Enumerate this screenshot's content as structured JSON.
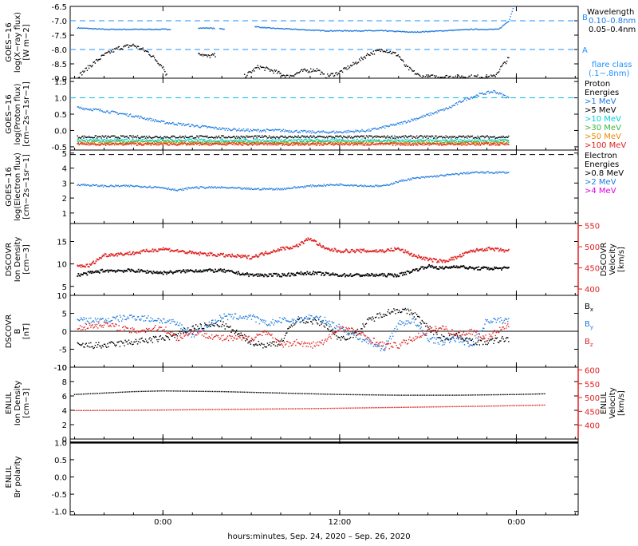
{
  "figure": {
    "xlabel": "hours:minutes, Sep. 24, 2020 – Sep. 26, 2020",
    "x_ticks": [
      "0:00",
      "12:00",
      "0:00"
    ],
    "colors": {
      "black": "#000000",
      "blue": "#1e7be0",
      "cyan": "#00d0e0",
      "green": "#3db83d",
      "orange": "#f08a00",
      "red": "#e02020",
      "magenta": "#e000e0",
      "dashed_cyan": "#00c0e8",
      "flare_blue": "#1e90ff"
    }
  },
  "chart_data": [
    {
      "type": "scatter",
      "panel": "goes-xray",
      "ylabel": [
        "GOES−16",
        "log(X−ray flux)",
        "[W m−2]"
      ],
      "ylim": [
        -9,
        -6.5
      ],
      "y_ticks": [
        "-6.5",
        "-7.0",
        "-7.5",
        "-8.0",
        "-8.5",
        "-9.0"
      ],
      "legend": {
        "title": "Wavelength",
        "items": [
          {
            "name": "0.10–0.8nm",
            "color": "blue"
          },
          {
            "name": "0.05–0.4nm",
            "color": "black"
          }
        ]
      },
      "flare_labels": [
        "B",
        "A"
      ],
      "flare_note": [
        "flare class",
        "(.1−.8nm)"
      ],
      "reference_lines": [
        -7.0,
        -8.0
      ],
      "series": [
        {
          "name": "0.10–0.8nm",
          "color": "blue",
          "x": [
            -5.8,
            -4,
            -2,
            0,
            1.5,
            3,
            3.8,
            5.5,
            6.2,
            7,
            9,
            11,
            13,
            15,
            17,
            19,
            21,
            22.8,
            23.5,
            23.8
          ],
          "y": [
            -7.25,
            -7.3,
            -7.3,
            -7.3,
            -7.28,
            -7.25,
            -7.28,
            -7.3,
            -7.2,
            -7.25,
            -7.3,
            -7.35,
            -7.35,
            -7.35,
            -7.4,
            -7.35,
            -7.3,
            -7.3,
            -7.0,
            -6.55
          ]
        },
        {
          "name": "0.05–0.4nm",
          "color": "black",
          "x": [
            -5.8,
            -5,
            -4,
            -3,
            -2,
            -1,
            0,
            0.3,
            2.4,
            3,
            3.5,
            5.5,
            6.5,
            7.5,
            8.5,
            9.5,
            10.5,
            11,
            12,
            13,
            14,
            15,
            16,
            16.5,
            17.5,
            18.5,
            21.7,
            22.5,
            23,
            23.5
          ],
          "y": [
            -8.95,
            -8.6,
            -8.2,
            -7.95,
            -7.85,
            -8.1,
            -8.6,
            -8.95,
            -8.1,
            -8.25,
            -8.2,
            -8.95,
            -8.6,
            -8.75,
            -8.95,
            -8.75,
            -8.7,
            -8.95,
            -8.8,
            -8.5,
            -8.15,
            -8.0,
            -8.2,
            -8.6,
            -8.95,
            -8.95,
            -8.95,
            -8.95,
            -8.6,
            -8.3
          ]
        }
      ]
    },
    {
      "type": "scatter",
      "panel": "goes-proton",
      "ylabel": [
        "GOES−16",
        "log(Proton flux)",
        "[cm−2s−1sr−1]"
      ],
      "ylim": [
        -0.6,
        1.6
      ],
      "y_ticks": [
        "1.5",
        "1.0",
        "0.5",
        "0.0",
        "-0.5"
      ],
      "legend": {
        "title": [
          "Proton",
          "Energies"
        ],
        "items": [
          {
            "name": ">1 MeV",
            "color": "blue"
          },
          {
            "name": ">5 MeV",
            "color": "black"
          },
          {
            "name": ">10 MeV",
            "color": "cyan"
          },
          {
            "name": ">30 MeV",
            "color": "green"
          },
          {
            "name": ">50 MeV",
            "color": "orange"
          },
          {
            "name": ">100 MeV",
            "color": "red"
          }
        ]
      },
      "reference_lines": [
        1.0
      ],
      "series": [
        {
          "name": ">1 MeV",
          "color": "blue",
          "x": [
            -5.8,
            -4,
            -2,
            0,
            2,
            4,
            6,
            8,
            10,
            12,
            14,
            16,
            17.5,
            18.5,
            19.5,
            20.5,
            21.5,
            22.5,
            23.5
          ],
          "y": [
            0.7,
            0.6,
            0.45,
            0.25,
            0.15,
            0.05,
            0.0,
            0.0,
            -0.05,
            -0.05,
            0.0,
            0.2,
            0.4,
            0.55,
            0.7,
            0.95,
            1.1,
            1.2,
            1.0
          ]
        },
        {
          "name": ">5 MeV",
          "color": "black",
          "x": [
            -5.8,
            23.5
          ],
          "y": [
            -0.2,
            -0.2
          ]
        },
        {
          "name": ">10 MeV",
          "color": "cyan",
          "x": [
            -5.8,
            23.5
          ],
          "y": [
            -0.3,
            -0.3
          ]
        },
        {
          "name": ">30 MeV",
          "color": "green",
          "x": [
            -5.8,
            23.5
          ],
          "y": [
            -0.35,
            -0.35
          ]
        },
        {
          "name": ">50 MeV",
          "color": "orange",
          "x": [
            -5.8,
            23.5
          ],
          "y": [
            -0.4,
            -0.4
          ]
        },
        {
          "name": ">100 MeV",
          "color": "red",
          "x": [
            -5.8,
            23.5
          ],
          "y": [
            -0.42,
            -0.42
          ]
        }
      ]
    },
    {
      "type": "scatter",
      "panel": "goes-electron",
      "ylabel": [
        "GOES−16",
        "log(Electron flux)",
        "[cm−2s−1sr−1]"
      ],
      "ylim": [
        0.3,
        5.2
      ],
      "y_ticks": [
        "5",
        "4",
        "3",
        "2",
        "1"
      ],
      "legend": {
        "title": [
          "Electron",
          "Energies"
        ],
        "items": [
          {
            "name": ">0.8 MeV",
            "color": "black"
          },
          {
            "name": ">2 MeV",
            "color": "blue"
          },
          {
            "name": ">4 MeV",
            "color": "magenta"
          }
        ]
      },
      "reference_lines": [
        4.9
      ],
      "series": [
        {
          "name": ">2 MeV",
          "color": "blue",
          "x": [
            -5.8,
            -4,
            -2,
            0,
            1,
            2,
            4,
            6,
            8,
            10,
            12,
            14,
            15,
            16,
            17,
            18,
            19,
            20,
            21,
            22,
            23.5
          ],
          "y": [
            2.9,
            2.8,
            2.8,
            2.7,
            2.5,
            2.7,
            2.7,
            2.6,
            2.6,
            2.8,
            2.9,
            2.8,
            2.8,
            3.1,
            3.3,
            3.4,
            3.5,
            3.6,
            3.7,
            3.7,
            3.7
          ]
        }
      ]
    },
    {
      "type": "scatter",
      "panel": "dscovr-plasma",
      "ylabel": [
        "DSCOVR",
        "Ion Density",
        "[cm−3]"
      ],
      "ylabel_right": [
        "DSCOVR",
        "Velocity",
        "[km/s]"
      ],
      "ylim": [
        3,
        19
      ],
      "ylim_right": [
        385,
        555
      ],
      "y_ticks": [
        "15",
        "10",
        "5"
      ],
      "y_ticks_right": [
        "550",
        "500",
        "450",
        "400"
      ],
      "series": [
        {
          "name": "Ion Density",
          "color": "black",
          "axis": "left",
          "x": [
            -5.8,
            -4,
            -2,
            0,
            2,
            4,
            6,
            8,
            10,
            12,
            14,
            16,
            17,
            18,
            19,
            20,
            21,
            22,
            23.5
          ],
          "y": [
            7.5,
            8.5,
            8.5,
            8.0,
            8.5,
            8.5,
            7.5,
            7.5,
            8.0,
            7.5,
            7.5,
            7.5,
            8.5,
            9.5,
            9.0,
            9.5,
            9.0,
            9.0,
            9.0
          ]
        },
        {
          "name": "Velocity",
          "color": "red",
          "axis": "right",
          "x": [
            -5.8,
            -5,
            -4,
            -2,
            0,
            2,
            4,
            6,
            8,
            9,
            10,
            11,
            12,
            14,
            15,
            16,
            17,
            18,
            19,
            20,
            21,
            22,
            23.5
          ],
          "y": [
            455,
            455,
            480,
            485,
            495,
            485,
            480,
            475,
            495,
            500,
            520,
            495,
            490,
            490,
            490,
            495,
            480,
            470,
            465,
            475,
            490,
            495,
            490
          ]
        }
      ]
    },
    {
      "type": "line",
      "panel": "dscovr-mag",
      "ylabel": [
        "DSCOVR",
        "B",
        "[nT]"
      ],
      "ylim": [
        -10,
        10
      ],
      "y_ticks": [
        "10",
        "5",
        "0",
        "-5",
        "-10"
      ],
      "zero_line": 0,
      "legend": {
        "items": [
          {
            "name": "Bx",
            "color": "black"
          },
          {
            "name": "By",
            "color": "blue"
          },
          {
            "name": "Bz",
            "color": "red"
          }
        ]
      },
      "series": [
        {
          "name": "Bx",
          "color": "black",
          "x": [
            -5.8,
            -4,
            -2,
            0,
            1,
            2,
            4,
            6,
            7,
            8,
            9,
            10,
            11,
            12,
            13,
            14,
            15,
            16,
            17,
            18,
            19,
            20,
            21,
            22,
            23.5
          ],
          "y": [
            -4,
            -4,
            -3,
            -2,
            -1,
            1,
            2,
            -3,
            -4,
            -3,
            3,
            3,
            2,
            -2,
            -1,
            3,
            5,
            6,
            5,
            1,
            -2,
            -1,
            -3,
            -3,
            -2
          ]
        },
        {
          "name": "By",
          "color": "blue",
          "x": [
            -5.8,
            -4,
            -2,
            0,
            1,
            2,
            4,
            6,
            7,
            8,
            9,
            10,
            11,
            12,
            13,
            14,
            15,
            16,
            17,
            18,
            19,
            20,
            21,
            22,
            23.5
          ],
          "y": [
            3,
            3,
            4,
            3,
            2,
            -1,
            4,
            4,
            2,
            3,
            3,
            4,
            3,
            1,
            -1,
            -3,
            -5,
            2,
            3,
            -2,
            -3,
            -2,
            -4,
            3,
            3
          ]
        },
        {
          "name": "Bz",
          "color": "red",
          "x": [
            -5.8,
            -4,
            -2,
            0,
            1,
            2,
            4,
            6,
            7,
            8,
            9,
            10,
            11,
            12,
            13,
            14,
            15,
            16,
            17,
            18,
            19,
            20,
            21,
            22,
            23.5
          ],
          "y": [
            1,
            2,
            0,
            1,
            -2,
            0,
            -2,
            -2,
            0,
            -4,
            -3,
            -4,
            -3,
            1,
            0,
            -2,
            -4,
            -4,
            -2,
            0,
            1,
            -1,
            0,
            -2,
            2
          ]
        }
      ]
    },
    {
      "type": "line",
      "panel": "enlil-plasma",
      "ylabel": [
        "ENLIL",
        "Ion Density",
        "[cm−3]"
      ],
      "ylabel_right": [
        "ENLIL",
        "Velocity",
        "[km/s]"
      ],
      "ylim": [
        0,
        10
      ],
      "ylim_right": [
        350,
        610
      ],
      "y_ticks": [
        "10",
        "8",
        "6",
        "4",
        "2",
        "0"
      ],
      "y_ticks_right": [
        "600",
        "550",
        "500",
        "450",
        "400"
      ],
      "series": [
        {
          "name": "Ion Density",
          "color": "black",
          "axis": "left",
          "x": [
            -6,
            -4,
            -2,
            0,
            4,
            8,
            12,
            16,
            20,
            24,
            26
          ],
          "y": [
            6.2,
            6.4,
            6.6,
            6.7,
            6.6,
            6.4,
            6.2,
            6.1,
            6.1,
            6.2,
            6.3
          ]
        },
        {
          "name": "Velocity",
          "color": "red",
          "axis": "right",
          "x": [
            -6,
            -2,
            2,
            6,
            10,
            14,
            18,
            22,
            26
          ],
          "y": [
            453,
            454,
            456,
            458,
            460,
            463,
            466,
            469,
            473
          ]
        }
      ]
    },
    {
      "type": "line",
      "panel": "enlil-polarity",
      "ylabel": [
        "ENLIL",
        "Br polarity"
      ],
      "ylim": [
        -1.1,
        1.1
      ],
      "y_ticks": [
        "1.0",
        "0.5",
        "0.0",
        "-0.5",
        "-1.0"
      ],
      "series": [
        {
          "name": "Br polarity",
          "color": "black",
          "x": [
            -6,
            26
          ],
          "y": [
            1.0,
            1.0
          ]
        }
      ]
    }
  ]
}
